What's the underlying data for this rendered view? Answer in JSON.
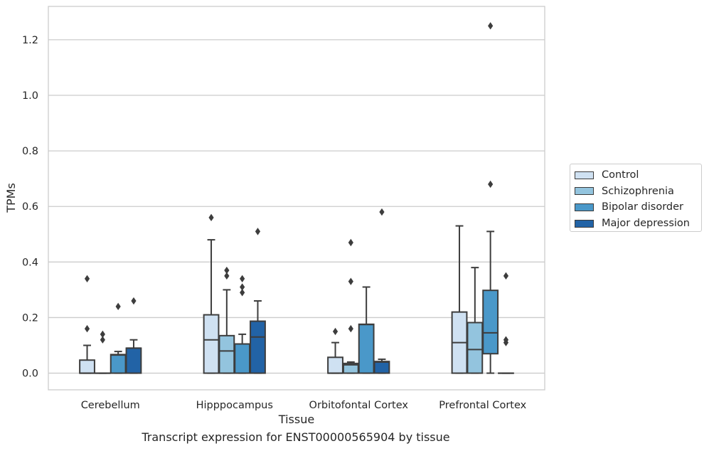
{
  "chart_data": {
    "type": "box",
    "title": "",
    "xlabel": "Tissue",
    "ylabel": "TPMs",
    "categories": [
      "Cerebellum",
      "Hipppocampus",
      "Orbitofontal Cortex",
      "Prefrontal Cortex"
    ],
    "ylim": [
      -0.06,
      1.32
    ],
    "yticks": [
      "0.0",
      "0.2",
      "0.4",
      "0.6",
      "0.8",
      "1.0",
      "1.2"
    ],
    "grid": true,
    "legend_position": "right",
    "colors": [
      "#cfe1f2",
      "#93c4de",
      "#4a98c9",
      "#2263a6"
    ],
    "series": [
      {
        "name": "Control",
        "boxes": [
          {
            "q1": 0.0,
            "median": 0.0,
            "q3": 0.047,
            "whisker_low": 0.0,
            "whisker_high": 0.1,
            "outliers": [
              0.16,
              0.34
            ]
          },
          {
            "q1": 0.0,
            "median": 0.12,
            "q3": 0.21,
            "whisker_low": 0.0,
            "whisker_high": 0.48,
            "outliers": [
              0.56
            ]
          },
          {
            "q1": 0.0,
            "median": 0.0,
            "q3": 0.057,
            "whisker_low": 0.0,
            "whisker_high": 0.11,
            "outliers": [
              0.15
            ]
          },
          {
            "q1": 0.0,
            "median": 0.11,
            "q3": 0.22,
            "whisker_low": 0.0,
            "whisker_high": 0.53,
            "outliers": []
          }
        ]
      },
      {
        "name": "Schizophrenia",
        "boxes": [
          {
            "q1": 0.0,
            "median": 0.0,
            "q3": 0.0,
            "whisker_low": 0.0,
            "whisker_high": 0.0,
            "outliers": [
              0.12,
              0.14
            ]
          },
          {
            "q1": 0.0,
            "median": 0.08,
            "q3": 0.135,
            "whisker_low": 0.0,
            "whisker_high": 0.3,
            "outliers": [
              0.35,
              0.37
            ]
          },
          {
            "q1": 0.0,
            "median": 0.03,
            "q3": 0.035,
            "whisker_low": 0.0,
            "whisker_high": 0.04,
            "outliers": [
              0.16,
              0.33,
              0.47
            ]
          },
          {
            "q1": 0.0,
            "median": 0.085,
            "q3": 0.182,
            "whisker_low": 0.0,
            "whisker_high": 0.38,
            "outliers": []
          }
        ]
      },
      {
        "name": "Bipolar disorder",
        "boxes": [
          {
            "q1": 0.0,
            "median": 0.065,
            "q3": 0.067,
            "whisker_low": 0.0,
            "whisker_high": 0.078,
            "outliers": [
              0.24
            ]
          },
          {
            "q1": 0.0,
            "median": 0.105,
            "q3": 0.105,
            "whisker_low": 0.0,
            "whisker_high": 0.14,
            "outliers": [
              0.29,
              0.31,
              0.34
            ]
          },
          {
            "q1": 0.0,
            "median": 0.175,
            "q3": 0.176,
            "whisker_low": 0.0,
            "whisker_high": 0.31,
            "outliers": []
          },
          {
            "q1": 0.07,
            "median": 0.145,
            "q3": 0.298,
            "whisker_low": 0.0,
            "whisker_high": 0.51,
            "outliers": [
              0.68,
              1.25
            ]
          }
        ]
      },
      {
        "name": "Major depression",
        "boxes": [
          {
            "q1": 0.0,
            "median": 0.09,
            "q3": 0.09,
            "whisker_low": 0.0,
            "whisker_high": 0.12,
            "outliers": [
              0.26
            ]
          },
          {
            "q1": 0.0,
            "median": 0.13,
            "q3": 0.187,
            "whisker_low": 0.0,
            "whisker_high": 0.26,
            "outliers": [
              0.51
            ]
          },
          {
            "q1": 0.0,
            "median": 0.04,
            "q3": 0.042,
            "whisker_low": 0.0,
            "whisker_high": 0.05,
            "outliers": [
              0.58
            ]
          },
          {
            "q1": 0.0,
            "median": 0.0,
            "q3": 0.0,
            "whisker_low": 0.0,
            "whisker_high": 0.0,
            "outliers": [
              0.11,
              0.12,
              0.35
            ]
          }
        ]
      }
    ],
    "caption": "Transcript expression for ENST00000565904 by tissue"
  }
}
